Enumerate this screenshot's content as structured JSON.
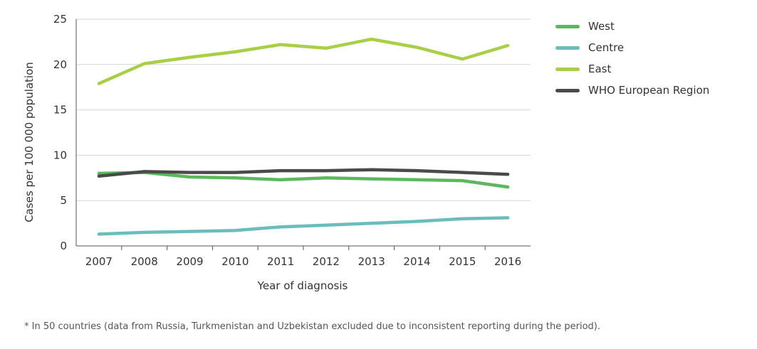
{
  "chart_data": {
    "type": "line",
    "xlabel": "Year of diagnosis",
    "ylabel": "Cases per 100 000 population",
    "ylim": [
      0,
      25
    ],
    "yticks": [
      0,
      5,
      10,
      15,
      20,
      25
    ],
    "x": [
      "2007",
      "2008",
      "2009",
      "2010",
      "2011",
      "2012",
      "2013",
      "2014",
      "2015",
      "2016"
    ],
    "grid": "horizontal",
    "legend_position": "right",
    "series": [
      {
        "name": "West",
        "color": "#5cb85c",
        "values": [
          8.0,
          8.1,
          7.6,
          7.5,
          7.3,
          7.5,
          7.4,
          7.3,
          7.2,
          6.5
        ]
      },
      {
        "name": "Centre",
        "color": "#6bbcbc",
        "values": [
          1.3,
          1.5,
          1.6,
          1.7,
          2.1,
          2.3,
          2.5,
          2.7,
          3.0,
          3.1
        ]
      },
      {
        "name": "East",
        "color": "#a9cf49",
        "values": [
          17.9,
          20.1,
          20.8,
          21.4,
          22.2,
          21.8,
          22.8,
          21.9,
          20.6,
          22.1
        ]
      },
      {
        "name": "WHO European Region",
        "color": "#4a4a4a",
        "values": [
          7.7,
          8.2,
          8.1,
          8.1,
          8.3,
          8.3,
          8.4,
          8.3,
          8.1,
          7.9
        ]
      }
    ]
  },
  "footnote": "* In 50 countries (data from Russia, Turkmenistan and Uzbekistan excluded due to inconsistent reporting during the period)."
}
